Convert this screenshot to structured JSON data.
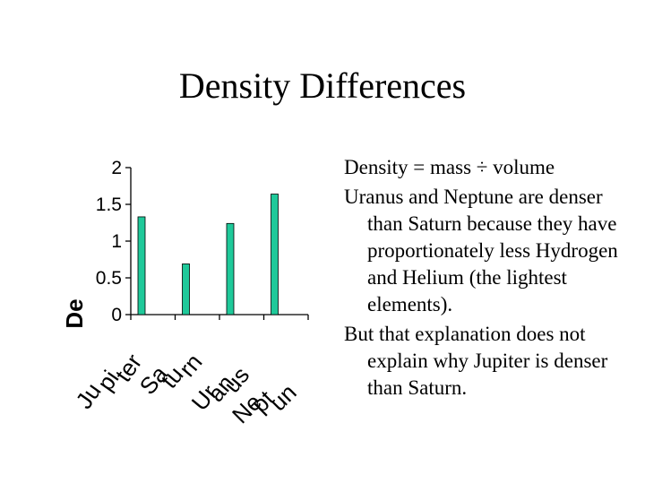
{
  "slide": {
    "title": "Density Differences"
  },
  "bullets": [
    "Density = mass ÷ volume",
    "Uranus and Neptune are denser than Saturn because they have proportionately less Hydrogen and Helium (the lightest elements).",
    "But that explanation does not explain why Jupiter is denser than Saturn."
  ],
  "chart_data": {
    "type": "bar",
    "title": "",
    "ylabel": "De",
    "xlabel": "",
    "categories": [
      "Jupiter",
      "Saturn",
      "Uranus",
      "Neptune"
    ],
    "category_labels_shown": [
      "Ju",
      "pi",
      "ter",
      "Sa",
      "tu",
      "rn",
      "Ur",
      "an",
      "us",
      "Ne",
      "pt",
      "un"
    ],
    "values": [
      1.33,
      0.69,
      1.24,
      1.64
    ],
    "ylim": [
      0,
      2
    ],
    "yticks": [
      "0",
      "0.5",
      "1",
      "1.5",
      "2"
    ],
    "colors": {
      "bar": "#1fc99a",
      "bar_edge": "#000000"
    },
    "grid": false,
    "legend": "none"
  }
}
